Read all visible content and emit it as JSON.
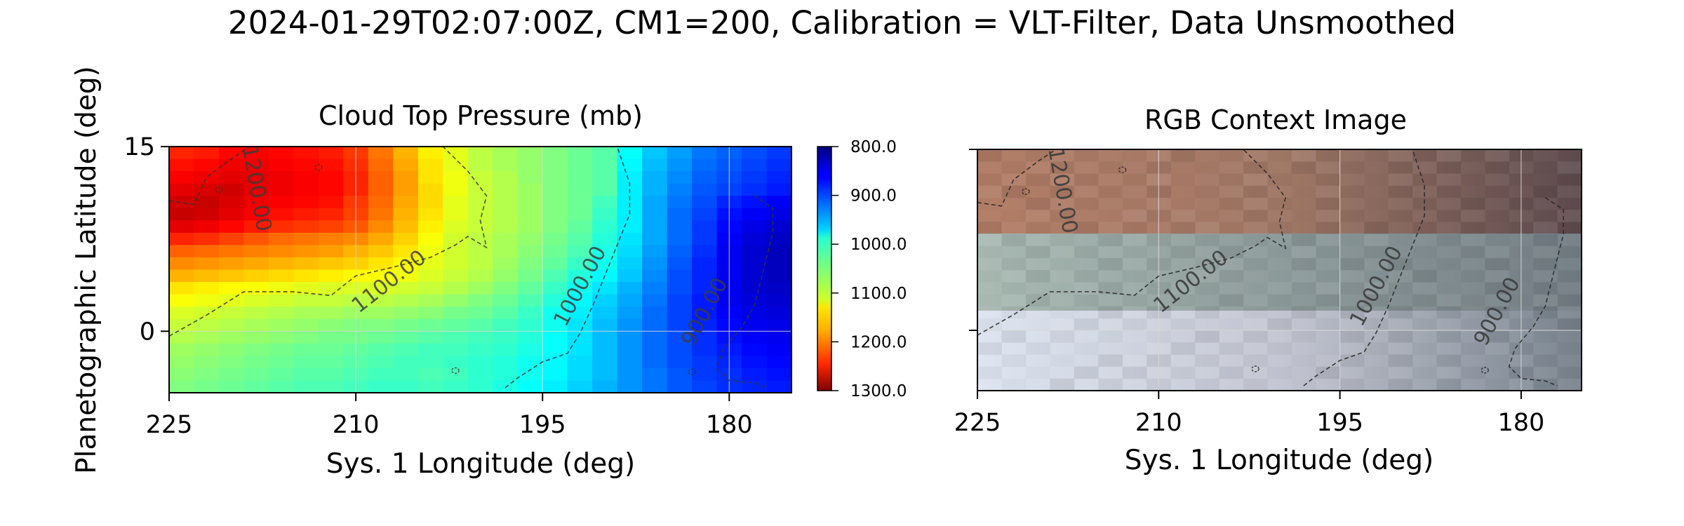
{
  "figure": {
    "suptitle": "2024-01-29T02:07:00Z, CM1=200, Calibration = VLT-Filter, Data Unsmoothed"
  },
  "chart_data": [
    {
      "type": "heatmap",
      "title": "Cloud Top Pressure (mb)",
      "xlabel": "Sys. 1 Longitude (deg)",
      "ylabel": "Planetographic Latitude (deg)",
      "xlim": [
        225,
        175
      ],
      "ylim": [
        -5,
        15
      ],
      "xticks": [
        "225",
        "210",
        "195",
        "180"
      ],
      "yticks": [
        "15",
        "0"
      ],
      "grid": true,
      "colormap": "jet_r",
      "colorbar": {
        "ticks": [
          "800.0",
          "900.0",
          "1000.0",
          "1100.0",
          "1200.0",
          "1300.0"
        ],
        "range": [
          800,
          1300
        ]
      },
      "contour_labels": [
        "1200.00",
        "1100.00",
        "1000.00",
        "900.00"
      ],
      "rows_lat": [
        14.5,
        13.5,
        12.5,
        11.5,
        10.5,
        9.5,
        8.5,
        7.5,
        6.5,
        5.5,
        4.5,
        3.5,
        2.5,
        1.5,
        0.5,
        -0.5,
        -1.5,
        -2.5,
        -3.5,
        -4.5
      ],
      "cols_lon": [
        224,
        222,
        220,
        218,
        216,
        214,
        212,
        210,
        208,
        206,
        204,
        202,
        200,
        198,
        196,
        194,
        192,
        190,
        188,
        186,
        184,
        182,
        180,
        178,
        176
      ],
      "grid_values_mb": [
        [
          1220,
          1225,
          1235,
          1240,
          1235,
          1230,
          1225,
          1210,
          1180,
          1150,
          1120,
          1100,
          1080,
          1070,
          1060,
          1050,
          1040,
          1030,
          990,
          960,
          940,
          920,
          910,
          900,
          890
        ],
        [
          1230,
          1235,
          1245,
          1245,
          1240,
          1235,
          1230,
          1215,
          1185,
          1155,
          1125,
          1100,
          1080,
          1070,
          1060,
          1050,
          1040,
          1030,
          985,
          955,
          935,
          915,
          905,
          895,
          885
        ],
        [
          1240,
          1245,
          1250,
          1250,
          1245,
          1240,
          1235,
          1220,
          1190,
          1160,
          1125,
          1105,
          1085,
          1075,
          1060,
          1050,
          1040,
          1030,
          980,
          950,
          930,
          910,
          900,
          890,
          880
        ],
        [
          1250,
          1255,
          1260,
          1250,
          1245,
          1240,
          1235,
          1220,
          1190,
          1160,
          1130,
          1105,
          1085,
          1075,
          1065,
          1050,
          1040,
          1030,
          980,
          950,
          925,
          905,
          895,
          885,
          875
        ],
        [
          1260,
          1265,
          1255,
          1245,
          1240,
          1235,
          1230,
          1210,
          1185,
          1155,
          1130,
          1100,
          1085,
          1075,
          1065,
          1050,
          1040,
          1020,
          980,
          945,
          920,
          900,
          880,
          870,
          860
        ],
        [
          1265,
          1260,
          1250,
          1240,
          1230,
          1225,
          1220,
          1205,
          1180,
          1150,
          1125,
          1100,
          1085,
          1075,
          1065,
          1050,
          1040,
          1015,
          980,
          945,
          915,
          895,
          870,
          860,
          850
        ],
        [
          1250,
          1245,
          1235,
          1225,
          1215,
          1210,
          1205,
          1195,
          1170,
          1145,
          1120,
          1095,
          1085,
          1075,
          1065,
          1050,
          1035,
          1010,
          980,
          945,
          915,
          890,
          865,
          850,
          840
        ],
        [
          1220,
          1215,
          1205,
          1195,
          1185,
          1180,
          1175,
          1170,
          1155,
          1135,
          1110,
          1090,
          1080,
          1070,
          1060,
          1045,
          1030,
          1005,
          975,
          945,
          915,
          890,
          860,
          845,
          835
        ],
        [
          1190,
          1185,
          1180,
          1175,
          1170,
          1165,
          1160,
          1150,
          1140,
          1125,
          1105,
          1090,
          1080,
          1070,
          1055,
          1040,
          1025,
          1000,
          970,
          940,
          910,
          885,
          855,
          840,
          830
        ],
        [
          1170,
          1165,
          1160,
          1155,
          1150,
          1145,
          1140,
          1135,
          1125,
          1115,
          1100,
          1090,
          1080,
          1065,
          1050,
          1035,
          1015,
          995,
          965,
          935,
          905,
          880,
          855,
          840,
          830
        ],
        [
          1150,
          1145,
          1140,
          1135,
          1130,
          1125,
          1120,
          1115,
          1110,
          1105,
          1095,
          1085,
          1075,
          1060,
          1045,
          1025,
          1005,
          985,
          960,
          930,
          900,
          880,
          855,
          840,
          830
        ],
        [
          1125,
          1120,
          1115,
          1110,
          1105,
          1100,
          1095,
          1095,
          1095,
          1090,
          1085,
          1075,
          1065,
          1050,
          1035,
          1015,
          995,
          975,
          950,
          925,
          900,
          880,
          855,
          840,
          835
        ],
        [
          1110,
          1105,
          1100,
          1095,
          1090,
          1085,
          1085,
          1080,
          1080,
          1075,
          1070,
          1060,
          1050,
          1040,
          1025,
          1005,
          985,
          965,
          945,
          920,
          895,
          875,
          855,
          845,
          840
        ],
        [
          1095,
          1090,
          1085,
          1080,
          1075,
          1070,
          1070,
          1065,
          1065,
          1060,
          1055,
          1045,
          1040,
          1030,
          1015,
          995,
          980,
          960,
          940,
          915,
          895,
          875,
          860,
          850,
          845
        ],
        [
          1085,
          1080,
          1075,
          1070,
          1065,
          1060,
          1055,
          1050,
          1050,
          1045,
          1040,
          1035,
          1030,
          1020,
          1010,
          995,
          975,
          955,
          935,
          915,
          895,
          880,
          865,
          855,
          850
        ],
        [
          1075,
          1070,
          1065,
          1060,
          1055,
          1050,
          1045,
          1045,
          1040,
          1035,
          1030,
          1025,
          1020,
          1015,
          1005,
          990,
          975,
          955,
          935,
          915,
          900,
          885,
          870,
          860,
          855
        ],
        [
          1065,
          1060,
          1055,
          1050,
          1045,
          1040,
          1040,
          1035,
          1030,
          1025,
          1020,
          1020,
          1015,
          1010,
          1000,
          990,
          975,
          955,
          935,
          915,
          900,
          885,
          875,
          865,
          860
        ],
        [
          1060,
          1055,
          1050,
          1045,
          1040,
          1035,
          1035,
          1030,
          1025,
          1020,
          1020,
          1015,
          1010,
          1005,
          995,
          985,
          970,
          955,
          935,
          915,
          900,
          890,
          880,
          870,
          865
        ],
        [
          1055,
          1050,
          1045,
          1040,
          1035,
          1030,
          1030,
          1025,
          1020,
          1020,
          1025,
          1020,
          1010,
          1005,
          995,
          985,
          970,
          955,
          935,
          920,
          905,
          890,
          885,
          875,
          870
        ],
        [
          1050,
          1045,
          1040,
          1035,
          1030,
          1025,
          1025,
          1020,
          1015,
          1015,
          1020,
          1015,
          1010,
          1000,
          990,
          980,
          965,
          950,
          935,
          920,
          905,
          895,
          885,
          880,
          875
        ]
      ]
    },
    {
      "type": "heatmap",
      "title": "RGB Context Image",
      "xlabel": "Sys. 1 Longitude (deg)",
      "xlim": [
        225,
        175
      ],
      "ylim": [
        -5,
        15
      ],
      "xticks": [
        "225",
        "210",
        "195",
        "180"
      ],
      "grid": true,
      "contour_labels": [
        "1200.00",
        "1100.00",
        "1000.00",
        "900.00"
      ],
      "corner_colors": {
        "top_left": "#b27d66",
        "top_mid": "#a17866",
        "top_right": "#5d4b4f",
        "mid_left": "#a8b9b2",
        "mid_right": "#737d84",
        "bottom_left": "#dde4f0",
        "bottom_mid": "#c3c6d2",
        "bottom_right": "#79838d"
      }
    }
  ]
}
